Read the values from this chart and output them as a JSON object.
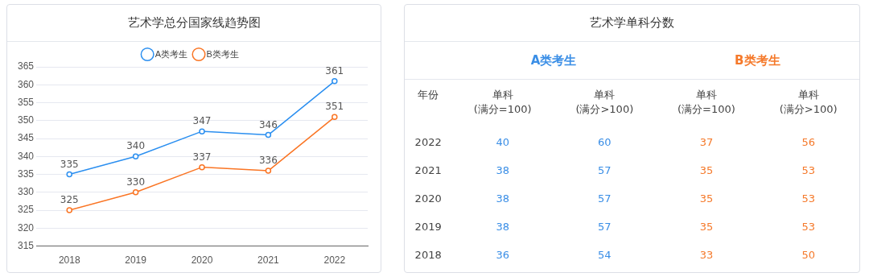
{
  "chart_data": [
    {
      "type": "line",
      "title": "艺术学总分国家线趋势图",
      "categories": [
        "2018",
        "2019",
        "2020",
        "2021",
        "2022"
      ],
      "series": [
        {
          "name": "A类考生",
          "color": "#2b8ff0",
          "values": [
            335,
            340,
            347,
            346,
            361
          ]
        },
        {
          "name": "B类考生",
          "color": "#fa7524",
          "values": [
            325,
            330,
            337,
            336,
            351
          ]
        }
      ],
      "ylim": [
        315,
        365
      ],
      "yticks": [
        315,
        320,
        325,
        330,
        335,
        340,
        345,
        350,
        355,
        360,
        365
      ],
      "grid": "y",
      "legend": "top",
      "marker": "circle",
      "line_style": "solid",
      "data_labels": true
    },
    {
      "type": "heatmap",
      "title": "艺术学单科分数",
      "ylabel": "年份",
      "categories": [
        "单科\n(满分=100)",
        "单科\n(满分>100)",
        "单科\n(满分=100)",
        "单科\n(满分>100)"
      ],
      "y_categories": [
        "2022",
        "2021",
        "2020",
        "2019",
        "2018"
      ],
      "cells": [
        [
          40,
          60,
          37,
          56
        ],
        [
          38,
          57,
          35,
          53
        ],
        [
          38,
          57,
          35,
          53
        ],
        [
          38,
          57,
          35,
          53
        ],
        [
          36,
          54,
          33,
          50
        ]
      ],
      "colors": [
        "#3a8ee6",
        "#3a8ee6",
        "#f5792a",
        "#f5792a"
      ],
      "annotations": [
        "A类考生",
        "B类考生"
      ],
      "data_labels": true
    }
  ]
}
